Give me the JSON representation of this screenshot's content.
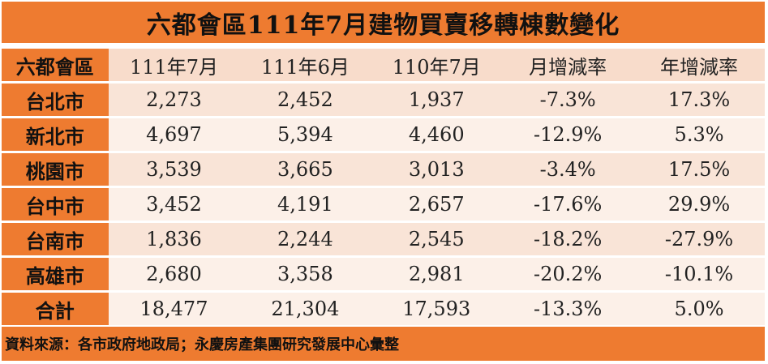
{
  "title": "六都會區111年7月建物買賣移轉棟數變化",
  "headers": [
    "六都會區",
    "111年7月",
    "111年6月",
    "110年7月",
    "月增減率",
    "年增減率"
  ],
  "rows": [
    {
      "name": "台北市",
      "values": [
        "2,273",
        "2,452",
        "1,937",
        "-7.3%",
        "17.3%"
      ]
    },
    {
      "name": "新北市",
      "values": [
        "4,697",
        "5,394",
        "4,460",
        "-12.9%",
        "5.3%"
      ]
    },
    {
      "name": "桃園市",
      "values": [
        "3,539",
        "3,665",
        "3,013",
        "-3.4%",
        "17.5%"
      ]
    },
    {
      "name": "台中市",
      "values": [
        "3,452",
        "4,191",
        "2,657",
        "-17.6%",
        "29.9%"
      ]
    },
    {
      "name": "台南市",
      "values": [
        "1,836",
        "2,244",
        "2,545",
        "-18.2%",
        "-27.9%"
      ]
    },
    {
      "name": "高雄市",
      "values": [
        "2,680",
        "3,358",
        "2,981",
        "-20.2%",
        "-10.1%"
      ]
    },
    {
      "name": "合計",
      "values": [
        "18,477",
        "21,304",
        "17,593",
        "-13.3%",
        "5.0%"
      ]
    }
  ],
  "footer": "資料來源：各市政府地政局；永慶房產集團研究發展中心彙整",
  "colors": {
    "accent": "#ee7b30",
    "cell_dark": "#f9e4d7",
    "cell_light": "#fcf0e8",
    "header_cell": "#f8dccb"
  }
}
